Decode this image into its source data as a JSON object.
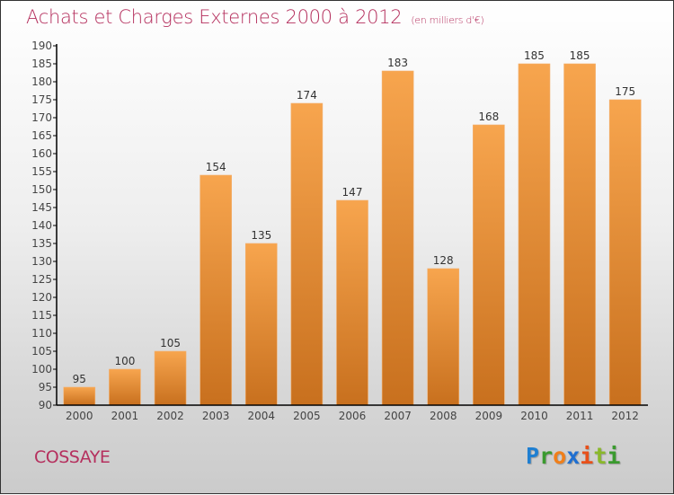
{
  "header": {
    "title": "Achats et Charges Externes 2000 à 2012",
    "unit": "(en milliers d'€)"
  },
  "footer": {
    "city": "COSSAYE",
    "logo_letters": [
      {
        "char": "P",
        "color": "#1f7fd1"
      },
      {
        "char": "r",
        "color": "#3a9a2e"
      },
      {
        "char": "o",
        "color": "#f07f1a"
      },
      {
        "char": "x",
        "color": "#1f6fd1"
      },
      {
        "char": "i",
        "color": "#e8501a"
      },
      {
        "char": "t",
        "color": "#8ab82a"
      },
      {
        "char": "i",
        "color": "#3a9a2e"
      }
    ]
  },
  "colors": {
    "title": "#b5305e",
    "bar_top": "#f7a54e",
    "bar_bottom": "#c8701e",
    "axis": "#000000"
  },
  "chart_data": {
    "type": "bar",
    "title": "Achats et Charges Externes 2000 à 2012 (en milliers d'€)",
    "xlabel": "",
    "ylabel": "",
    "categories": [
      "2000",
      "2001",
      "2002",
      "2003",
      "2004",
      "2005",
      "2006",
      "2007",
      "2008",
      "2009",
      "2010",
      "2011",
      "2012"
    ],
    "values": [
      95,
      100,
      105,
      154,
      135,
      174,
      147,
      183,
      128,
      168,
      185,
      185,
      175
    ],
    "ylim": [
      90,
      190
    ],
    "yticks": [
      90,
      95,
      100,
      105,
      110,
      115,
      120,
      125,
      130,
      135,
      140,
      145,
      150,
      155,
      160,
      165,
      170,
      175,
      180,
      185,
      190
    ],
    "grid": false,
    "legend": "none",
    "data_labels": true
  }
}
